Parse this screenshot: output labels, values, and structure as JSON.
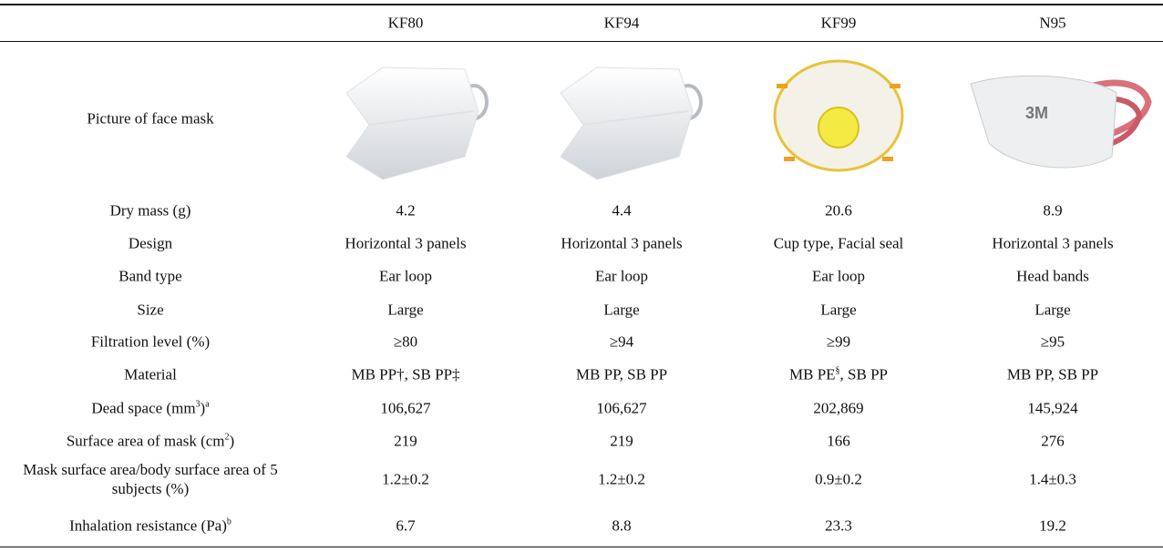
{
  "table": {
    "columns": [
      "KF80",
      "KF94",
      "KF99",
      "N95"
    ],
    "image_row_label": "Picture of face mask",
    "rows": [
      {
        "label": "Dry mass (g)",
        "cells": [
          "4.2",
          "4.4",
          "20.6",
          "8.9"
        ]
      },
      {
        "label": "Design",
        "cells": [
          "Horizontal 3 panels",
          "Horizontal 3 panels",
          "Cup type, Facial seal",
          "Horizontal 3 panels"
        ]
      },
      {
        "label": "Band type",
        "cells": [
          "Ear loop",
          "Ear loop",
          "Ear loop",
          "Head bands"
        ]
      },
      {
        "label": "Size",
        "cells": [
          "Large",
          "Large",
          "Large",
          "Large"
        ]
      },
      {
        "label": "Filtration level (%)",
        "cells": [
          "≥80",
          "≥94",
          "≥99",
          "≥95"
        ]
      },
      {
        "label": "Material",
        "cells": [
          "MB PP†, SB PP‡",
          "MB PP, SB PP",
          [
            {
              "text": "MB PE"
            },
            {
              "text": "§",
              "sup": true
            },
            {
              "text": ", SB PP"
            }
          ],
          "MB PP, SB PP"
        ]
      },
      {
        "label": [
          {
            "text": "Dead space (mm"
          },
          {
            "text": "3",
            "sup": true
          },
          {
            "text": ")"
          },
          {
            "text": "a",
            "sup": true
          }
        ],
        "cells": [
          "106,627",
          "106,627",
          "202,869",
          "145,924"
        ]
      },
      {
        "label": [
          {
            "text": "Surface area of mask (cm"
          },
          {
            "text": "2",
            "sup": true
          },
          {
            "text": ")"
          }
        ],
        "cells": [
          "219",
          "219",
          "166",
          "276"
        ]
      },
      {
        "label": "Mask surface area/body surface area of 5 subjects (%)",
        "cells": [
          "1.2±0.2",
          "1.2±0.2",
          "0.9±0.2",
          "1.4±0.3"
        ]
      },
      {
        "label": [
          {
            "text": "Inhalation resistance (Pa)"
          },
          {
            "text": "b",
            "sup": true
          }
        ],
        "cells": [
          "6.7",
          "8.8",
          "23.3",
          "19.2"
        ]
      }
    ]
  }
}
